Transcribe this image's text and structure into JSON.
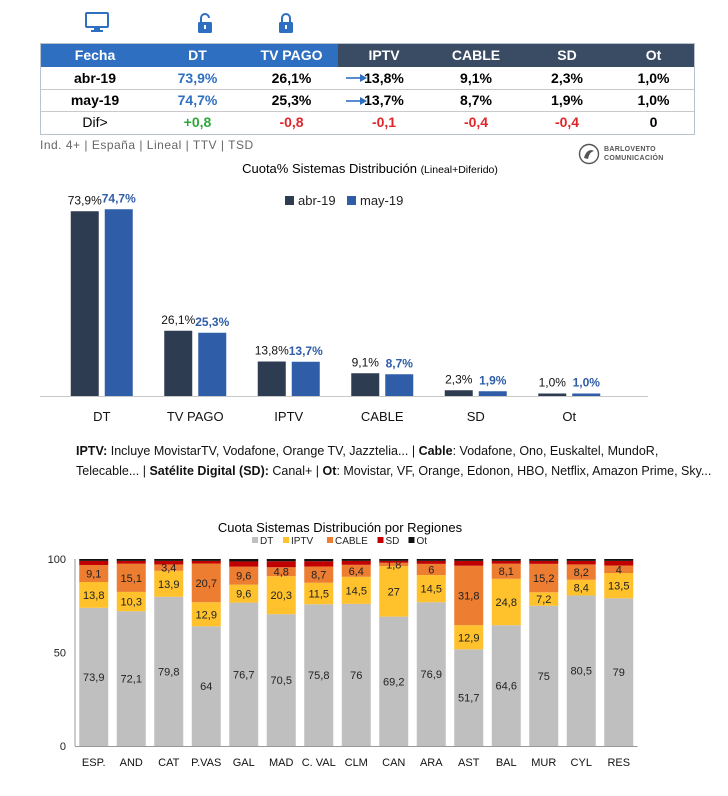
{
  "summary": {
    "headers": [
      "Fecha",
      "DT",
      "TV PAGO",
      "IPTV",
      "CABLE",
      "SD",
      "Ot"
    ],
    "rows": [
      {
        "fecha": "abr-19",
        "dt": "73,9%",
        "tvpago": "26,1%",
        "iptv": "13,8%",
        "cable": "9,1%",
        "sd": "2,3%",
        "ot": "1,0%"
      },
      {
        "fecha": "may-19",
        "dt": "74,7%",
        "tvpago": "25,3%",
        "iptv": "13,7%",
        "cable": "8,7%",
        "sd": "1,9%",
        "ot": "1,0%"
      }
    ],
    "diff": {
      "fecha": "Dif>",
      "dt": "+0,8",
      "tvpago": "-0,8",
      "iptv": "-0,1",
      "cable": "-0,4",
      "sd": "-0,4",
      "ot": "0"
    }
  },
  "meta_line": "Ind. 4+ | España | Lineal | TTV | TSD",
  "brand": {
    "line1": "BARLOVENTO",
    "line2": "COMUNICACIÓN"
  },
  "colors": {
    "header_dark": "#3a4b64",
    "header_blue": "#2f6fc1",
    "series_dark": "#2e3c52",
    "series_blue": "#2f5da8",
    "positive": "#2ea83a",
    "negative": "#e0262b"
  },
  "notes": {
    "iptv_label": "IPTV:",
    "iptv_text": " Incluye MovistarTV, Vodafone, Orange TV, Jazztelia... | ",
    "cable_label": "Cable",
    "cable_text": ": Vodafone, Ono, Euskaltel, MundoR, Telecable... | ",
    "sd_label": "Satélite Digital (SD):",
    "sd_text": " Canal+ | ",
    "ot_label": "Ot",
    "ot_text": ": Movistar, VF, Orange, Edonon, HBO, Netflix, Amazon Prime, Sky..."
  },
  "chart_data": [
    {
      "type": "bar",
      "title": "Cuota% Sistemas Distribución",
      "subtitle": "(Lineal+Diferido)",
      "categories": [
        "DT",
        "TV PAGO",
        "IPTV",
        "CABLE",
        "SD",
        "Ot"
      ],
      "series": [
        {
          "name": "abr-19",
          "values": [
            73.9,
            26.1,
            13.8,
            9.1,
            2.3,
            1.0
          ],
          "labels": [
            "73,9%",
            "26,1%",
            "13,8%",
            "9,1%",
            "2,3%",
            "1,0%"
          ]
        },
        {
          "name": "may-19",
          "values": [
            74.7,
            25.3,
            13.7,
            8.7,
            1.9,
            1.0
          ],
          "labels": [
            "74,7%",
            "25,3%",
            "13,7%",
            "8,7%",
            "1,9%",
            "1,0%"
          ]
        }
      ],
      "ylim": [
        0,
        80
      ],
      "legend": "top"
    },
    {
      "type": "bar",
      "stacked": true,
      "title": "Cuota Sistemas Distribución por  Regiones",
      "categories": [
        "ESP.",
        "AND",
        "CAT",
        "P.VAS",
        "GAL",
        "MAD",
        "C. VAL",
        "CLM",
        "CAN",
        "ARA",
        "AST",
        "BAL",
        "MUR",
        "CYL",
        "RES"
      ],
      "series": [
        {
          "name": "DT",
          "color": "#bfbfbf",
          "values": [
            73.9,
            72.1,
            79.8,
            64,
            76.7,
            70.5,
            75.8,
            76,
            69.2,
            76.9,
            51.7,
            64.6,
            75,
            80.5,
            79
          ],
          "labels": [
            "73,9",
            "72,1",
            "79,8",
            "64",
            "76,7",
            "70,5",
            "75,8",
            "76",
            "69,2",
            "76,9",
            "51,7",
            "64,6",
            "75",
            "80,5",
            "79"
          ]
        },
        {
          "name": "IPTV",
          "color": "#ffc12c",
          "values": [
            13.8,
            10.3,
            13.9,
            12.9,
            9.6,
            20.3,
            11.5,
            14.5,
            27,
            14.5,
            12.9,
            24.8,
            7.2,
            8.4,
            13.5
          ],
          "labels": [
            "13,8",
            "10,3",
            "13,9",
            "12,9",
            "9,6",
            "20,3",
            "11,5",
            "14,5",
            "27",
            "14,5",
            "12,9",
            "24,8",
            "7,2",
            "8,4",
            "13,5"
          ]
        },
        {
          "name": "CABLE",
          "color": "#ed7d31",
          "values": [
            9.1,
            15.1,
            3.4,
            20.7,
            9.6,
            4.8,
            8.7,
            6.4,
            1.8,
            6,
            31.8,
            8.1,
            15.2,
            8.2,
            4
          ],
          "labels": [
            "9,1",
            "15,1",
            "3,4",
            "20,7",
            "9,6",
            "4,8",
            "8,7",
            "6,4",
            "1,8",
            "6",
            "31,8",
            "8,1",
            "15,2",
            "8,2",
            "4"
          ]
        },
        {
          "name": "SD",
          "color": "#c00000",
          "values": [
            2.2,
            1.5,
            1.9,
            1.4,
            2.8,
            3.2,
            2.8,
            2.1,
            1.0,
            1.6,
            2.6,
            1.5,
            1.6,
            1.9,
            2.5
          ]
        },
        {
          "name": "Ot",
          "color": "#111111",
          "values": [
            1.0,
            1.0,
            1.0,
            1.0,
            1.3,
            1.2,
            1.2,
            1.0,
            1.0,
            1.0,
            1.0,
            1.0,
            1.0,
            1.0,
            1.0
          ]
        }
      ],
      "yticks": [
        0,
        50,
        100
      ],
      "ylim": [
        0,
        100
      ]
    }
  ]
}
